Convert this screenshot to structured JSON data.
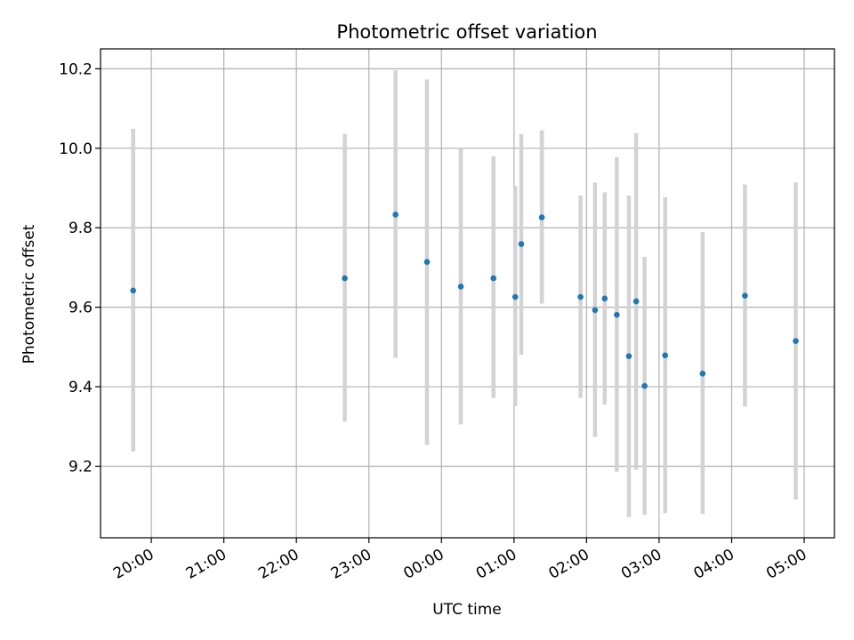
{
  "chart_data": {
    "type": "scatter",
    "title": "Photometric offset variation",
    "xlabel": "UTC time",
    "ylabel": "Photometric offset",
    "x_unit": "hours",
    "xlim": [
      "19:18",
      "05:25"
    ],
    "ylim": [
      9.02,
      10.25
    ],
    "x_ticks": [
      "20:00",
      "21:00",
      "22:00",
      "23:00",
      "00:00",
      "01:00",
      "02:00",
      "03:00",
      "04:00",
      "05:00"
    ],
    "y_ticks": [
      9.2,
      9.4,
      9.6,
      9.8,
      10.0,
      10.2
    ],
    "y_tick_labels": [
      "9.2",
      "9.4",
      "9.6",
      "9.8",
      "10.0",
      "10.2"
    ],
    "grid": true,
    "marker_color": "#1f77b4",
    "errorbar_color": "#d3d3d3",
    "series": [
      {
        "points": [
          {
            "x": "19:45",
            "y": 9.642,
            "ylow": 9.237,
            "yhigh": 10.049
          },
          {
            "x": "22:40",
            "y": 9.673,
            "ylow": 9.312,
            "yhigh": 10.036
          },
          {
            "x": "23:22",
            "y": 9.833,
            "ylow": 9.473,
            "yhigh": 10.196
          },
          {
            "x": "23:48",
            "y": 9.714,
            "ylow": 9.254,
            "yhigh": 10.173
          },
          {
            "x": "00:16",
            "y": 9.652,
            "ylow": 9.305,
            "yhigh": 10.0
          },
          {
            "x": "00:43",
            "y": 9.673,
            "ylow": 9.372,
            "yhigh": 9.98
          },
          {
            "x": "01:01",
            "y": 9.626,
            "ylow": 9.351,
            "yhigh": 9.905
          },
          {
            "x": "01:06",
            "y": 9.759,
            "ylow": 9.48,
            "yhigh": 10.036
          },
          {
            "x": "01:23",
            "y": 9.826,
            "ylow": 9.609,
            "yhigh": 10.045
          },
          {
            "x": "01:55",
            "y": 9.626,
            "ylow": 9.372,
            "yhigh": 9.881
          },
          {
            "x": "02:07",
            "y": 9.593,
            "ylow": 9.274,
            "yhigh": 9.914
          },
          {
            "x": "02:15",
            "y": 9.622,
            "ylow": 9.355,
            "yhigh": 9.889
          },
          {
            "x": "02:25",
            "y": 9.581,
            "ylow": 9.186,
            "yhigh": 9.978
          },
          {
            "x": "02:35",
            "y": 9.477,
            "ylow": 9.072,
            "yhigh": 9.881
          },
          {
            "x": "02:41",
            "y": 9.615,
            "ylow": 9.191,
            "yhigh": 10.038
          },
          {
            "x": "02:48",
            "y": 9.402,
            "ylow": 9.078,
            "yhigh": 9.727
          },
          {
            "x": "03:05",
            "y": 9.479,
            "ylow": 9.082,
            "yhigh": 9.877
          },
          {
            "x": "03:36",
            "y": 9.433,
            "ylow": 9.08,
            "yhigh": 9.789
          },
          {
            "x": "04:11",
            "y": 9.629,
            "ylow": 9.35,
            "yhigh": 9.909
          },
          {
            "x": "04:53",
            "y": 9.515,
            "ylow": 9.116,
            "yhigh": 9.914
          }
        ]
      }
    ]
  }
}
